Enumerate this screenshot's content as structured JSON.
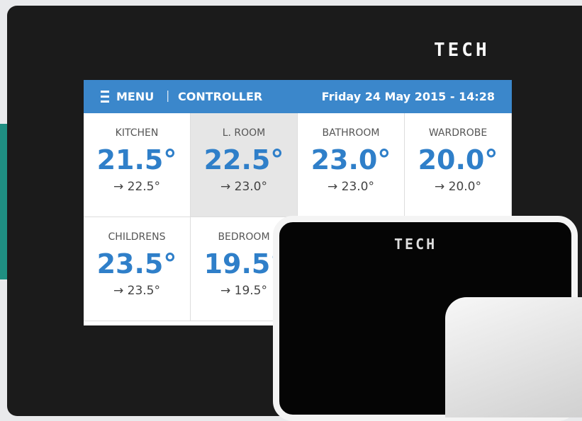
{
  "device": {
    "logo": "TECH"
  },
  "screen": {
    "header": {
      "menu": "MENU",
      "title": "CONTROLLER",
      "datetime": "Friday 24 May 2015 - 14:28"
    },
    "rooms": [
      {
        "name": "KITCHEN",
        "temperature": "21.5°",
        "target": "→ 22.5°"
      },
      {
        "name": "L. ROOM",
        "temperature": "22.5°",
        "target": "→ 23.0°"
      },
      {
        "name": "BATHROOM",
        "temperature": "23.0°",
        "target": "→ 23.0°"
      },
      {
        "name": "WARDROBE",
        "temperature": "20.0°",
        "target": "→ 20.0°"
      },
      {
        "name": "CHILDRENS",
        "temperature": "23.5°",
        "target": "→ 23.5°"
      },
      {
        "name": "BEDROOM",
        "temperature": "19.5°",
        "target": "→ 19.5°"
      }
    ]
  },
  "second_device": {
    "logo": "TECH"
  }
}
